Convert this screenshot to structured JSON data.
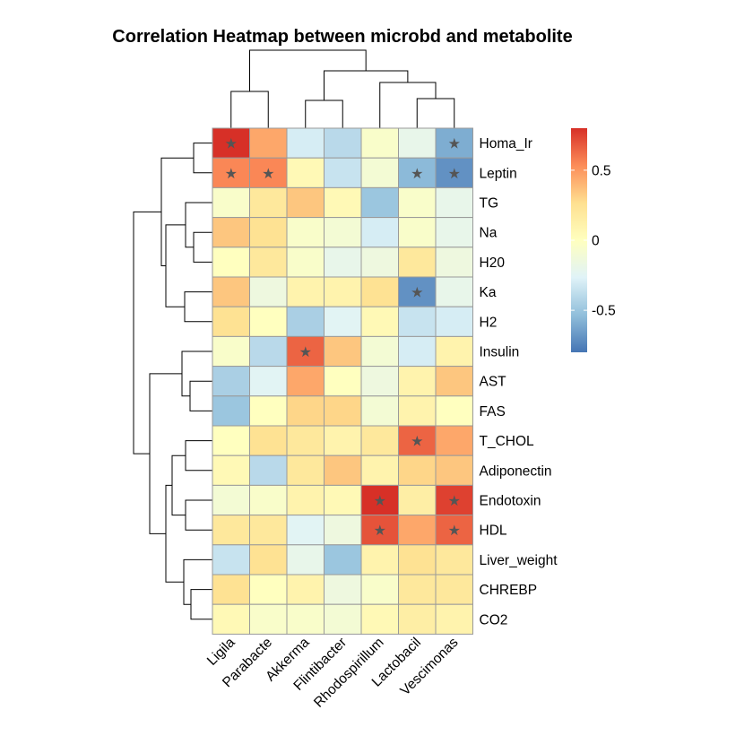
{
  "chart_data": {
    "type": "heatmap",
    "title": "Correlation Heatmap between microbd and metabolite",
    "columns": [
      "Ligila",
      "Parabacte",
      "Akkerma",
      "Flintibacter",
      "Rhodospirillum",
      "Lactobacil",
      "Vescimonas"
    ],
    "rows": [
      "Homa_Ir",
      "Leptin",
      "TG",
      "Na",
      "H20",
      "Ka",
      "H2",
      "Insulin",
      "AST",
      "FAS",
      "T_CHOL",
      "Adiponectin",
      "Endotoxin",
      "HDL",
      "Liver_weight",
      "CHREBP",
      "CO2"
    ],
    "values": [
      [
        0.8,
        0.45,
        -0.3,
        -0.4,
        -0.05,
        -0.2,
        -0.6
      ],
      [
        0.55,
        0.55,
        0.05,
        -0.35,
        -0.1,
        -0.55,
        -0.7
      ],
      [
        -0.05,
        0.2,
        0.35,
        0.05,
        -0.5,
        -0.05,
        -0.2
      ],
      [
        0.35,
        0.25,
        -0.05,
        -0.1,
        -0.3,
        -0.05,
        -0.2
      ],
      [
        0.0,
        0.2,
        -0.05,
        -0.2,
        -0.15,
        0.2,
        -0.15
      ],
      [
        0.35,
        -0.15,
        0.1,
        0.1,
        0.25,
        -0.7,
        -0.2
      ],
      [
        0.25,
        0.0,
        -0.45,
        -0.25,
        0.05,
        -0.35,
        -0.3
      ],
      [
        -0.05,
        -0.4,
        0.65,
        0.35,
        -0.1,
        -0.3,
        0.1
      ],
      [
        -0.45,
        -0.25,
        0.45,
        0.0,
        -0.15,
        0.1,
        0.35
      ],
      [
        -0.5,
        0.0,
        0.3,
        0.3,
        -0.1,
        0.1,
        0.0
      ],
      [
        0.0,
        0.25,
        0.2,
        0.1,
        0.2,
        0.65,
        0.45
      ],
      [
        0.05,
        -0.4,
        0.2,
        0.35,
        0.1,
        0.3,
        0.35
      ],
      [
        -0.1,
        -0.05,
        0.1,
        0.05,
        0.85,
        0.15,
        0.75
      ],
      [
        0.2,
        0.2,
        -0.25,
        -0.15,
        0.7,
        0.45,
        0.65
      ],
      [
        -0.35,
        0.25,
        -0.2,
        -0.5,
        0.1,
        0.25,
        0.2
      ],
      [
        0.25,
        0.0,
        0.1,
        -0.15,
        -0.05,
        0.2,
        0.2
      ],
      [
        0.05,
        -0.05,
        -0.05,
        -0.1,
        0.05,
        0.15,
        0.1
      ]
    ],
    "significant": [
      [
        0,
        0
      ],
      [
        0,
        6
      ],
      [
        1,
        0
      ],
      [
        1,
        1
      ],
      [
        1,
        5
      ],
      [
        1,
        6
      ],
      [
        5,
        5
      ],
      [
        7,
        2
      ],
      [
        10,
        5
      ],
      [
        12,
        4
      ],
      [
        12,
        6
      ],
      [
        13,
        4
      ],
      [
        13,
        6
      ]
    ],
    "marker_symbol": "★",
    "color_scale": {
      "min": -0.8,
      "max": 0.8,
      "stops": [
        "#4575b4",
        "#91bfdb",
        "#e0f3f8",
        "#ffffbf",
        "#fee090",
        "#fc8d59",
        "#d73027"
      ]
    },
    "legend": {
      "ticks": [
        0.5,
        0,
        -0.5
      ],
      "tick_labels": [
        "0.5",
        "0",
        "-0.5"
      ],
      "placement": "right"
    },
    "cell_border_color": "#9a9a9a",
    "marker_color": "#555555"
  }
}
